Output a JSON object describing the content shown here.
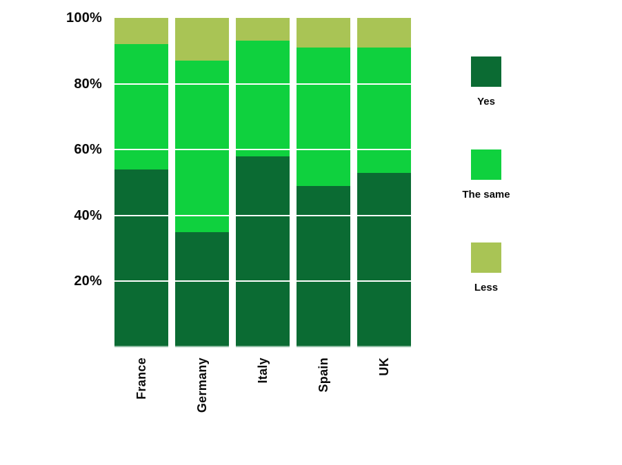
{
  "background_color": "#ffffff",
  "chart_data": {
    "type": "bar",
    "stacked": true,
    "orientation": "vertical",
    "title": "",
    "xlabel": "",
    "ylabel": "",
    "categories": [
      "France",
      "Germany",
      "Italy",
      "Spain",
      "UK"
    ],
    "series": [
      {
        "name": "Yes",
        "color": "#0b6b33",
        "values": [
          54,
          35,
          58,
          49,
          53
        ]
      },
      {
        "name": "The same",
        "color": "#0fd13e",
        "values": [
          38,
          52,
          35,
          42,
          38
        ]
      },
      {
        "name": "Less",
        "color": "#a9c455",
        "values": [
          8,
          13,
          7,
          9,
          9
        ]
      }
    ],
    "ylim": [
      0,
      100
    ],
    "y_unit": "%",
    "yticks": [
      {
        "label": "100%",
        "value": 100
      },
      {
        "label": "80%",
        "value": 80
      },
      {
        "label": "60%",
        "value": 60
      },
      {
        "label": "40%",
        "value": 40
      },
      {
        "label": "20%",
        "value": 20
      }
    ],
    "gridlines": {
      "values": [
        20,
        40,
        60,
        80
      ],
      "color": "#ffffff"
    },
    "legend_position": "right",
    "x_label_rotation": -90
  }
}
